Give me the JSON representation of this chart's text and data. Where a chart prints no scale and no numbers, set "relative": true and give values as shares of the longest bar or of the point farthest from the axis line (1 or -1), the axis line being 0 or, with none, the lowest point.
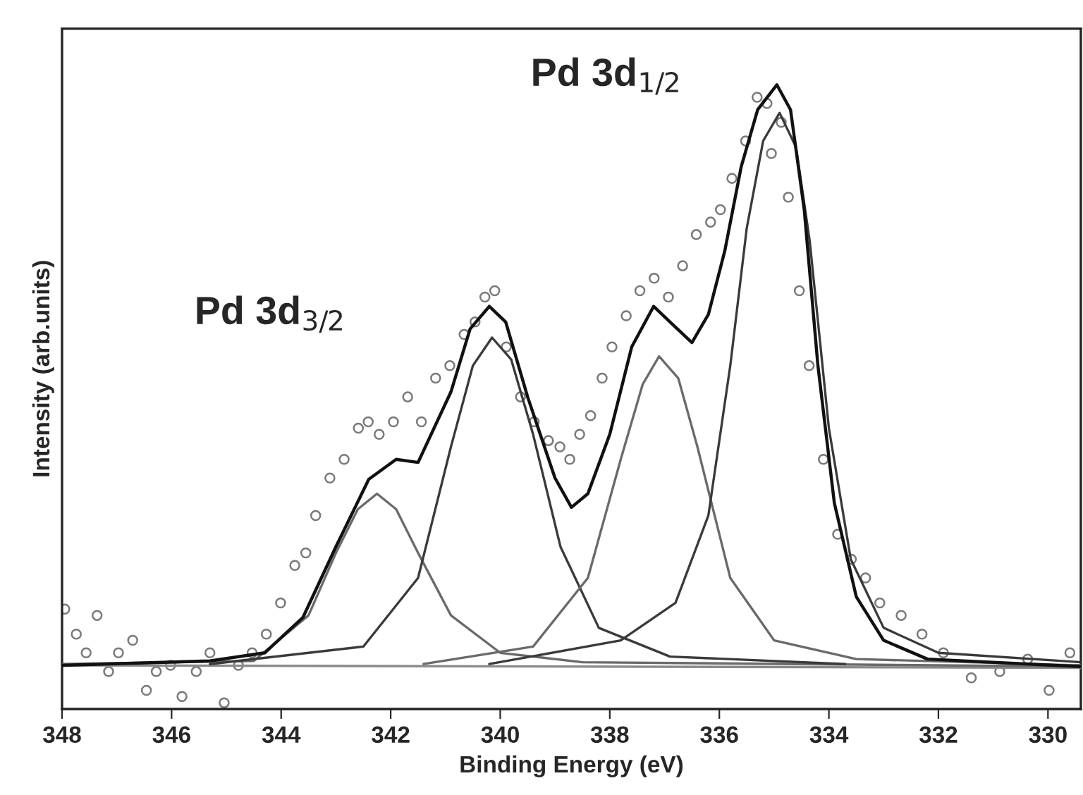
{
  "chart_data": {
    "type": "line",
    "relative": true,
    "xlabel": "Binding Energy (eV)",
    "ylabel": "Intensity (arb.units)",
    "xlim": [
      348,
      329.4
    ],
    "xticks": [
      348,
      346,
      344,
      342,
      340,
      338,
      336,
      334,
      332,
      330
    ],
    "grid": false,
    "line_style": "solid",
    "annotations": [
      "Pd 3d$_{3/2}$",
      "Pd 3d$_{1/2}$"
    ],
    "series": [
      {
        "type": "scatter",
        "marker": "circle",
        "color": "#7a7a7a",
        "x": [
          347.95,
          347.74,
          347.56,
          347.36,
          347.15,
          346.97,
          346.71,
          346.46,
          346.28,
          346.02,
          345.81,
          345.55,
          345.3,
          345.04,
          344.78,
          344.53,
          344.27,
          344.01,
          343.75,
          343.55,
          343.37,
          343.11,
          342.85,
          342.59,
          342.41,
          342.21,
          341.95,
          341.69,
          341.44,
          341.18,
          340.92,
          340.66,
          340.46,
          340.28,
          340.1,
          339.89,
          339.63,
          339.38,
          339.12,
          338.91,
          338.73,
          338.55,
          338.35,
          338.14,
          337.96,
          337.7,
          337.45,
          337.19,
          336.93,
          336.67,
          336.42,
          336.16,
          335.98,
          335.77,
          335.52,
          335.31,
          335.13,
          335.05,
          334.87,
          334.74,
          334.54,
          334.36,
          334.1,
          333.84,
          333.59,
          333.33,
          333.07,
          332.68,
          332.3,
          331.91,
          331.4,
          330.88,
          330.37,
          329.98,
          329.6
        ],
        "values": [
          0.16,
          0.12,
          0.09,
          0.15,
          0.06,
          0.09,
          0.11,
          0.03,
          0.06,
          0.07,
          0.02,
          0.06,
          0.09,
          0.01,
          0.07,
          0.09,
          0.12,
          0.17,
          0.23,
          0.25,
          0.31,
          0.37,
          0.4,
          0.45,
          0.46,
          0.44,
          0.46,
          0.5,
          0.46,
          0.53,
          0.55,
          0.6,
          0.62,
          0.66,
          0.67,
          0.58,
          0.5,
          0.46,
          0.43,
          0.42,
          0.4,
          0.44,
          0.47,
          0.53,
          0.58,
          0.63,
          0.67,
          0.69,
          0.66,
          0.71,
          0.76,
          0.78,
          0.8,
          0.85,
          0.91,
          0.98,
          0.97,
          0.89,
          0.94,
          0.82,
          0.67,
          0.55,
          0.4,
          0.28,
          0.24,
          0.21,
          0.17,
          0.15,
          0.12,
          0.09,
          0.05,
          0.06,
          0.08,
          0.03,
          0.09
        ]
      },
      {
        "color": "#8a8a8a",
        "x": [
          348.0,
          329.4
        ],
        "values": [
          0.07,
          0.066
        ]
      },
      {
        "color": "#6a6a6a",
        "x": [
          348.0,
          344.5,
          343.5,
          343.0,
          342.6,
          342.25,
          341.9,
          341.5,
          340.9,
          340.0,
          338.5,
          329.4
        ],
        "values": [
          0.072,
          0.077,
          0.15,
          0.25,
          0.32,
          0.345,
          0.32,
          0.25,
          0.15,
          0.09,
          0.075,
          0.068
        ]
      },
      {
        "color": "#3a3a3a",
        "x": [
          345.3,
          342.5,
          341.5,
          340.9,
          340.5,
          340.15,
          339.8,
          339.4,
          338.9,
          338.2,
          336.9,
          333.7
        ],
        "values": [
          0.072,
          0.1,
          0.21,
          0.42,
          0.55,
          0.595,
          0.56,
          0.44,
          0.26,
          0.13,
          0.084,
          0.072
        ]
      },
      {
        "color": "#6a6a6a",
        "x": [
          341.4,
          339.4,
          338.4,
          337.8,
          337.4,
          337.1,
          336.75,
          336.4,
          335.8,
          335.0,
          333.5,
          329.4
        ],
        "values": [
          0.072,
          0.1,
          0.21,
          0.4,
          0.52,
          0.565,
          0.53,
          0.42,
          0.21,
          0.11,
          0.08,
          0.07
        ]
      },
      {
        "color": "#3a3a3a",
        "x": [
          340.2,
          337.8,
          336.8,
          336.2,
          335.8,
          335.5,
          335.2,
          334.9,
          334.6,
          334.35,
          334.0,
          333.6,
          333.0,
          332.0,
          329.4
        ],
        "values": [
          0.072,
          0.11,
          0.17,
          0.31,
          0.55,
          0.77,
          0.91,
          0.955,
          0.9,
          0.75,
          0.45,
          0.24,
          0.13,
          0.09,
          0.075
        ]
      },
      {
        "color": "#111111",
        "x": [
          348.0,
          345.3,
          344.3,
          343.6,
          343.0,
          342.4,
          341.9,
          341.5,
          340.9,
          340.55,
          340.2,
          339.9,
          339.5,
          339.0,
          338.7,
          338.4,
          338.0,
          337.6,
          337.2,
          336.9,
          336.5,
          336.2,
          335.9,
          335.6,
          335.3,
          334.95,
          334.7,
          334.45,
          334.2,
          333.9,
          333.5,
          333.0,
          332.2,
          329.4
        ],
        "values": [
          0.07,
          0.077,
          0.09,
          0.147,
          0.26,
          0.368,
          0.4,
          0.395,
          0.508,
          0.609,
          0.645,
          0.62,
          0.5,
          0.37,
          0.323,
          0.345,
          0.44,
          0.58,
          0.645,
          0.62,
          0.587,
          0.632,
          0.734,
          0.869,
          0.96,
          1.0,
          0.96,
          0.8,
          0.55,
          0.33,
          0.18,
          0.11,
          0.08,
          0.068
        ]
      }
    ]
  }
}
